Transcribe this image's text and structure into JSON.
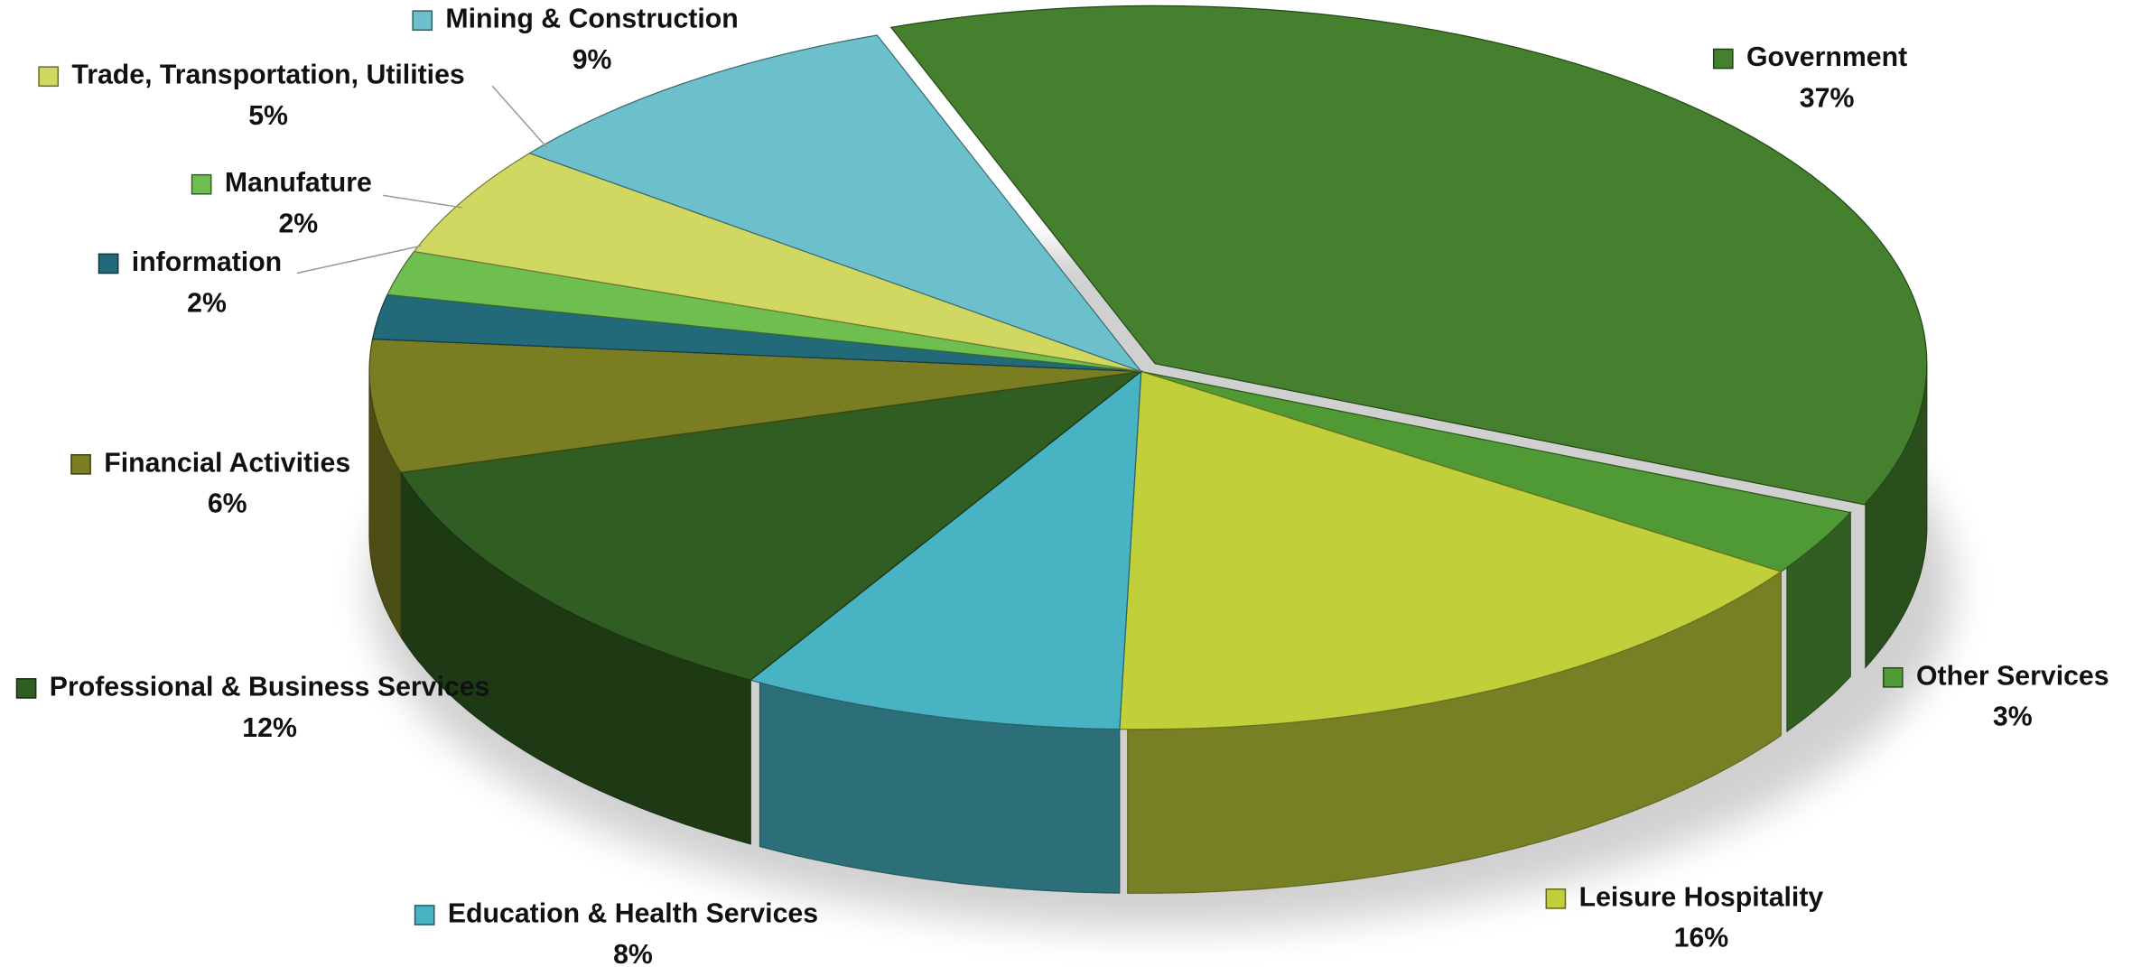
{
  "chart_data": {
    "type": "pie",
    "categories": [
      "Government",
      "Other Services",
      "Leisure Hospitality",
      "Education & Health Services",
      "Professional & Business Services",
      "Financial Activities",
      "information",
      "Manufature",
      "Trade, Transportation, Utilities",
      "Mining & Construction"
    ],
    "values": [
      37,
      3,
      16,
      8,
      12,
      6,
      2,
      2,
      5,
      9
    ],
    "value_labels": [
      "37%",
      "3%",
      "16%",
      "8%",
      "12%",
      "6%",
      "2%",
      "2%",
      "5%",
      "9%"
    ],
    "colors": [
      "#44802e",
      "#4f9a35",
      "#c0cf3a",
      "#48b3c2",
      "#2f5d22",
      "#7a7d22",
      "#226a7a",
      "#6ebf50",
      "#d0d862",
      "#6cc0cc"
    ]
  }
}
